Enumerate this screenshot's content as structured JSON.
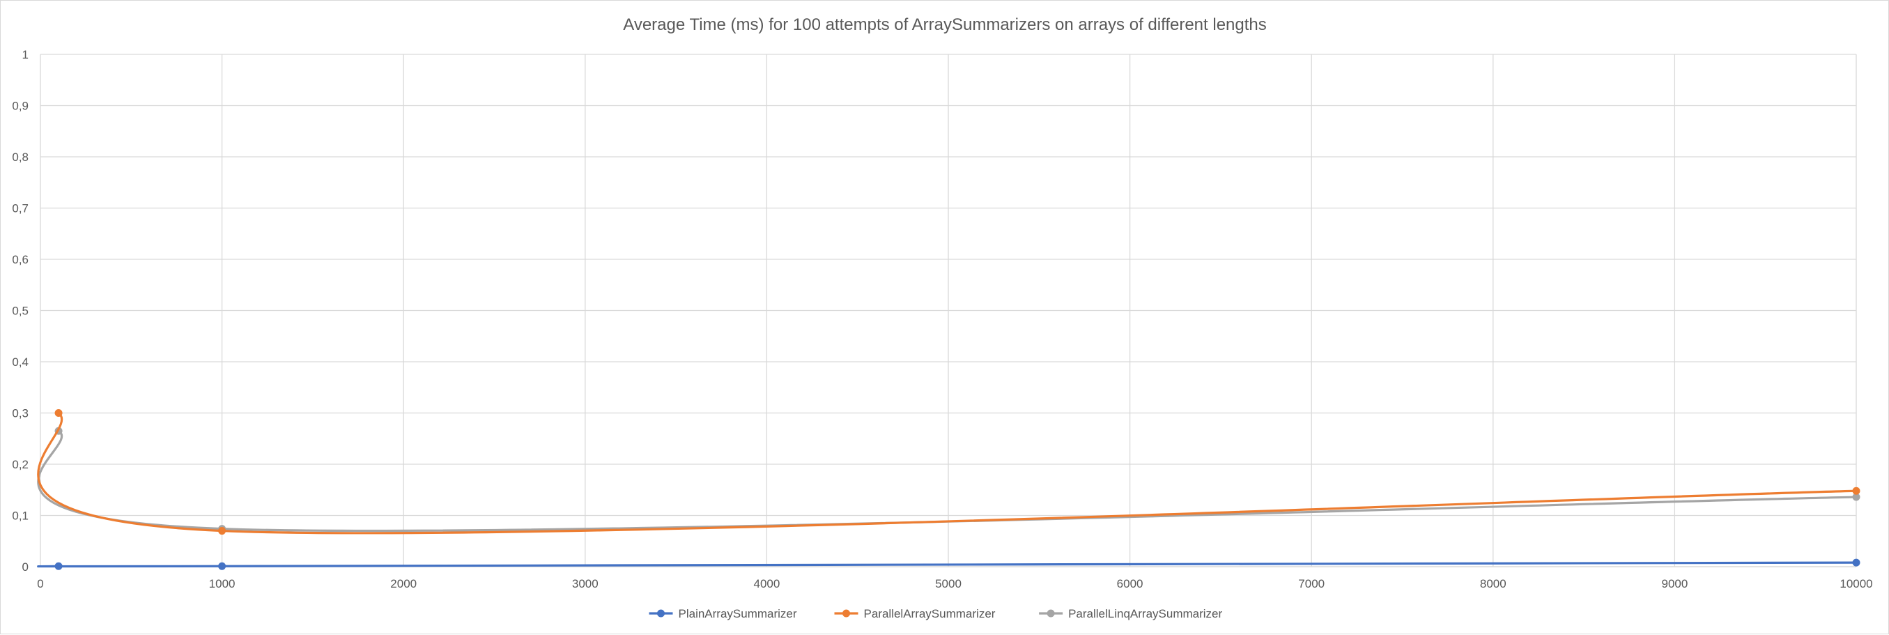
{
  "chart_data": {
    "type": "line",
    "title": "Average Time (ms) for 100 attempts of ArraySummarizers on arrays of different lengths",
    "xlabel": "",
    "ylabel": "",
    "xlim": [
      0,
      10000
    ],
    "ylim": [
      0,
      1
    ],
    "x_ticks": [
      "0",
      "1000",
      "2000",
      "3000",
      "4000",
      "5000",
      "6000",
      "7000",
      "8000",
      "9000",
      "10000"
    ],
    "y_ticks": [
      "0",
      "0,1",
      "0,2",
      "0,3",
      "0,4",
      "0,5",
      "0,6",
      "0,7",
      "0,8",
      "0,9",
      "1"
    ],
    "grid": true,
    "smooth": true,
    "legend_position": "bottom",
    "series": [
      {
        "name": "PlainArraySummarizer",
        "color": "#4472C4",
        "x": [
          100,
          1000,
          10000
        ],
        "y": [
          0.001,
          0.001,
          0.008
        ]
      },
      {
        "name": "ParallelArraySummarizer",
        "color": "#ED7D31",
        "x": [
          100,
          1000,
          10000
        ],
        "y": [
          0.3,
          0.07,
          0.148
        ]
      },
      {
        "name": "ParallelLinqArraySummarizer",
        "color": "#A5A5A5",
        "x": [
          100,
          1000,
          10000
        ],
        "y": [
          0.265,
          0.074,
          0.136
        ]
      }
    ]
  }
}
